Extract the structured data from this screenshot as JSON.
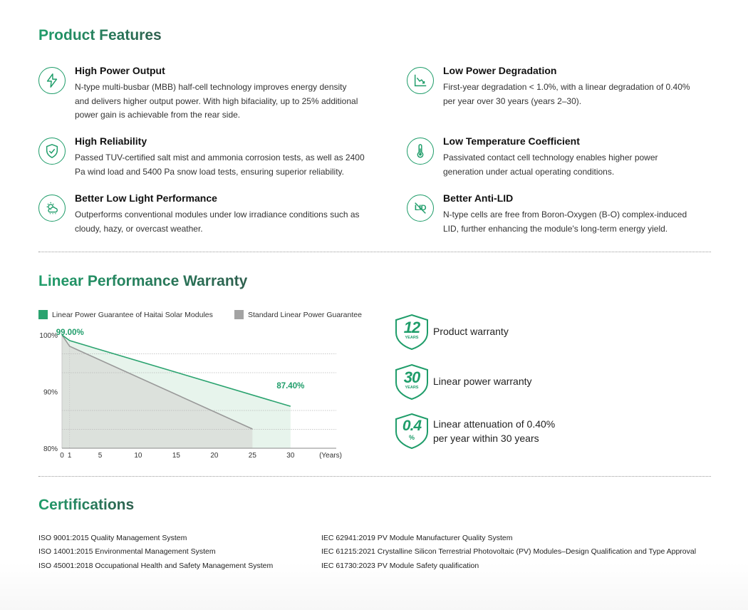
{
  "features": {
    "title": "Product Features",
    "items": [
      {
        "title": "High Power Output",
        "icon": "lightning-icon",
        "lines": [
          "N-type multi-busbar (MBB) half-cell technology improves energy density",
          "and delivers higher output power. With high bifaciality, up to 25% additional",
          "power gain is achievable from the rear side."
        ]
      },
      {
        "title": "Low Power Degradation",
        "icon": "declining-chart-icon",
        "lines": [
          "First-year degradation < 1.0%, with a linear degradation of 0.40%",
          "per year over 30 years (years 2–30)."
        ]
      },
      {
        "title": "High Reliability",
        "icon": "shield-check-icon",
        "lines": [
          "Passed TUV-certified salt mist and ammonia corrosion tests, as well as 2400",
          "Pa wind load and 5400 Pa snow load tests, ensuring superior reliability."
        ]
      },
      {
        "title": "Low Temperature Coefficient",
        "icon": "thermometer-icon",
        "lines": [
          "Passivated contact cell technology enables higher power",
          "generation under actual operating conditions."
        ]
      },
      {
        "title": "Better Low Light Performance",
        "icon": "cloudy-sun-icon",
        "lines": [
          "Outperforms conventional modules under low irradiance conditions such as",
          "cloudy, hazy, or overcast weather."
        ]
      },
      {
        "title": "Better Anti-LID",
        "icon": "no-lid-icon",
        "icon_text": "LID",
        "lines": [
          "N-type cells are free from Boron-Oxygen (B-O) complex-induced",
          "LID, further enhancing the module's long-term energy yield."
        ]
      }
    ]
  },
  "warranty": {
    "title": "Linear Performance Warranty",
    "badges": [
      {
        "number": "12",
        "sub": "YEARS",
        "lines": [
          "Product warranty"
        ]
      },
      {
        "number": "30",
        "sub": "YEARS",
        "lines": [
          "Linear power warranty"
        ]
      },
      {
        "number": "0.4",
        "sub": "%",
        "lines": [
          "Linear attenuation of 0.40%",
          "per year within 30 years"
        ]
      }
    ]
  },
  "chart_data": {
    "type": "area",
    "title": "",
    "xlabel": "(Years)",
    "ylabel": "",
    "xlim": [
      0,
      36
    ],
    "ylim": [
      80,
      100
    ],
    "x_ticks": [
      0,
      1,
      5,
      10,
      15,
      20,
      25,
      30
    ],
    "y_ticks": [
      80,
      90,
      100
    ],
    "y_tick_labels": [
      "80%",
      "90%",
      "100%"
    ],
    "gridlines_y": [
      96.67,
      93.33,
      86.67,
      83.33
    ],
    "legend_position": "top",
    "series": [
      {
        "name": "Linear Power Guarantee of Haitai Solar Modules",
        "color": "#2aa36f",
        "fill": "#e7f4ec",
        "x": [
          0,
          1,
          30
        ],
        "y": [
          100,
          99.0,
          87.4
        ]
      },
      {
        "name": "Standard Linear Power Guarantee",
        "color": "#999999",
        "fill": "#d9ddd9",
        "x": [
          0,
          1,
          25
        ],
        "y": [
          100,
          98.0,
          83.4
        ]
      }
    ],
    "annotations": [
      {
        "text": "99.00%",
        "x": 1,
        "y": 99.0
      },
      {
        "text": "87.40%",
        "x": 30,
        "y": 87.4
      }
    ]
  },
  "certifications": {
    "title": "Certifications",
    "left": [
      "ISO 9001:2015 Quality Management System",
      "ISO 14001:2015 Environmental Management System",
      "ISO 45001:2018 Occupational Health and Safety Management System"
    ],
    "right": [
      "IEC 62941:2019 PV Module Manufacturer Quality System",
      "IEC 61215:2021 Crystalline Silicon Terrestrial Photovoltaic (PV) Modules–Design Qualification and Type Approval",
      "IEC 61730:2023 PV Module Safety qualification"
    ]
  }
}
